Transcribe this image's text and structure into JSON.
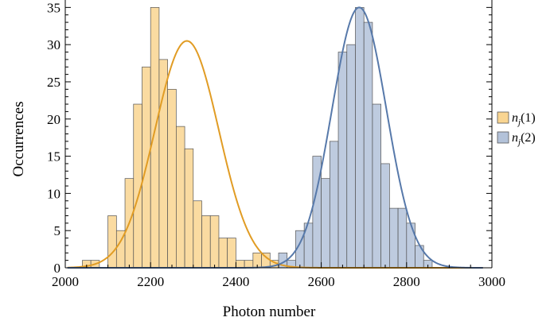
{
  "chart_data": {
    "type": "bar",
    "xlabel": "Photon number",
    "ylabel": "Occurrences",
    "xlim": [
      2000,
      3000
    ],
    "ylim": [
      0,
      36
    ],
    "xticks": [
      2000,
      2200,
      2400,
      2600,
      2800,
      3000
    ],
    "xtick_labels": [
      "2000",
      "2200",
      "2400",
      "2600",
      "2800",
      "3000"
    ],
    "yticks": [
      0,
      5,
      10,
      15,
      20,
      25,
      30,
      35
    ],
    "ytick_labels": [
      "0",
      "5",
      "10",
      "15",
      "20",
      "25",
      "30",
      "35"
    ],
    "bin_width": 20,
    "grid": false,
    "legend_position": "right",
    "series": [
      {
        "name": "n_j(1)",
        "color_fill": "#f9d591",
        "color_line": "#e19c24",
        "bin_starts": [
          2040,
          2060,
          2080,
          2100,
          2120,
          2140,
          2160,
          2180,
          2200,
          2220,
          2240,
          2260,
          2280,
          2300,
          2320,
          2340,
          2360,
          2380,
          2400,
          2420,
          2440,
          2460,
          2480
        ],
        "counts": [
          1,
          1,
          0,
          7,
          5,
          12,
          22,
          27,
          35,
          28,
          24,
          19,
          16,
          9,
          7,
          7,
          4,
          4,
          1,
          1,
          2,
          2,
          1
        ],
        "fit": {
          "mean": 2285,
          "sd": 75,
          "peak": 30.5
        }
      },
      {
        "name": "n_j(2)",
        "color_fill": "#b3c2d9",
        "color_line": "#5779aa",
        "bin_starts": [
          2500,
          2520,
          2540,
          2560,
          2580,
          2600,
          2620,
          2640,
          2660,
          2680,
          2700,
          2720,
          2740,
          2760,
          2780,
          2800,
          2820,
          2840
        ],
        "counts": [
          2,
          1,
          5,
          6,
          15,
          12,
          17,
          29,
          30,
          35,
          33,
          22,
          14,
          8,
          8,
          6,
          3,
          1
        ],
        "fit": {
          "mean": 2689,
          "sd": 64,
          "peak": 35
        }
      }
    ],
    "legend": [
      "n_j(1)",
      "n_j(2)"
    ]
  },
  "legend_labels": [
    {
      "base": "n",
      "sub": "j",
      "arg": "(1)"
    },
    {
      "base": "n",
      "sub": "j",
      "arg": "(2)"
    }
  ]
}
